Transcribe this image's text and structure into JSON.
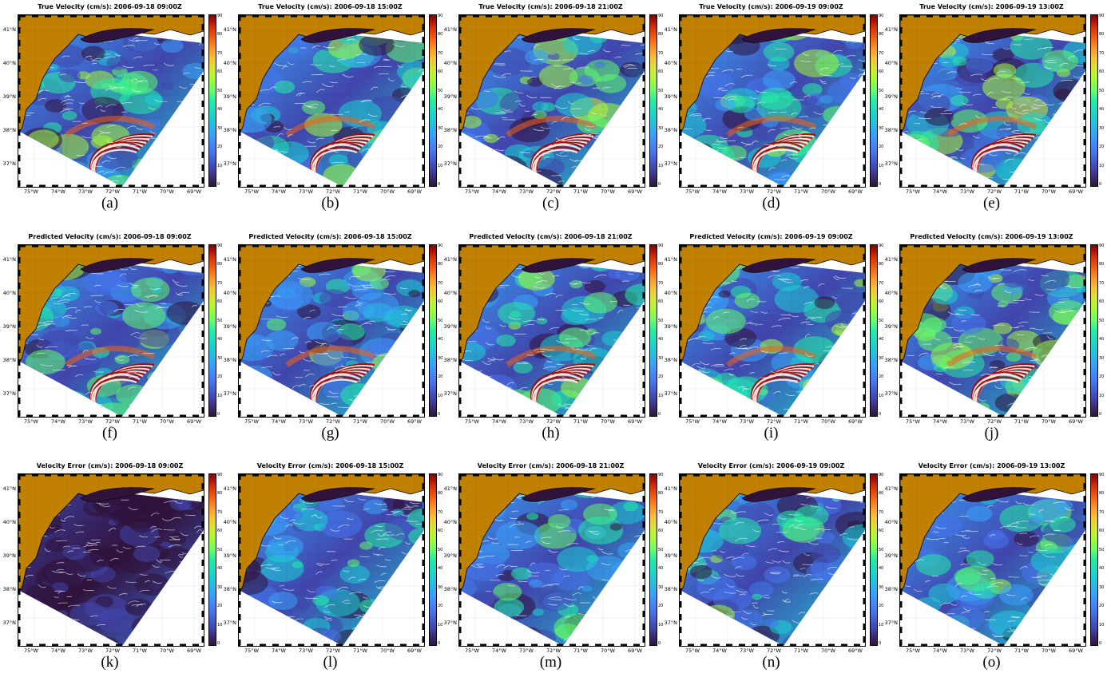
{
  "figure": {
    "colorbar_ticks": [
      "0",
      "10",
      "20",
      "30",
      "40",
      "50",
      "60",
      "70",
      "80",
      "90"
    ],
    "lat_labels": [
      "41°N",
      "40°N",
      "39°N",
      "38°N",
      "37°N"
    ],
    "lon_labels": [
      "75°W",
      "74°W",
      "73°W",
      "72°W",
      "71°W",
      "70°W",
      "69°W"
    ],
    "colors": {
      "land": "#c08000",
      "ocean_low": "#30123b",
      "ocean_mid": "#4675ed",
      "ocean_high": "#7a0403",
      "streamlines": "#ffffff"
    },
    "colormap": "turbo",
    "rows": [
      {
        "variable": "True Velocity (cm/s)",
        "panels": [
          {
            "title": "True Velocity (cm/s): 2006-09-18 09:00Z",
            "label": "(a)",
            "intensity": 0.55
          },
          {
            "title": "True Velocity (cm/s): 2006-09-18 15:00Z",
            "label": "(b)",
            "intensity": 0.55
          },
          {
            "title": "True Velocity (cm/s): 2006-09-18 21:00Z",
            "label": "(c)",
            "intensity": 0.6
          },
          {
            "title": "True Velocity (cm/s): 2006-09-19 09:00Z",
            "label": "(d)",
            "intensity": 0.55
          },
          {
            "title": "True Velocity (cm/s): 2006-09-19 13:00Z",
            "label": "(e)",
            "intensity": 0.6
          }
        ]
      },
      {
        "variable": "Predicted Velocity (cm/s)",
        "panels": [
          {
            "title": "Predicted Velocity (cm/s): 2006-09-18 09:00Z",
            "label": "(f)",
            "intensity": 0.5
          },
          {
            "title": "Predicted Velocity (cm/s): 2006-09-18 15:00Z",
            "label": "(g)",
            "intensity": 0.55
          },
          {
            "title": "Predicted Velocity (cm/s): 2006-09-18 21:00Z",
            "label": "(h)",
            "intensity": 0.55
          },
          {
            "title": "Predicted Velocity (cm/s): 2006-09-19 09:00Z",
            "label": "(i)",
            "intensity": 0.55
          },
          {
            "title": "Predicted Velocity (cm/s): 2006-09-19 13:00Z",
            "label": "(j)",
            "intensity": 0.6
          }
        ]
      },
      {
        "variable": "Velocity Error (cm/s)",
        "panels": [
          {
            "title": "Velocity Error (cm/s): 2006-09-18 09:00Z",
            "label": "(k)",
            "intensity": 0.05
          },
          {
            "title": "Velocity Error (cm/s): 2006-09-18 15:00Z",
            "label": "(l)",
            "intensity": 0.4
          },
          {
            "title": "Velocity Error (cm/s): 2006-09-18 21:00Z",
            "label": "(m)",
            "intensity": 0.4
          },
          {
            "title": "Velocity Error (cm/s): 2006-09-19 09:00Z",
            "label": "(n)",
            "intensity": 0.45
          },
          {
            "title": "Velocity Error (cm/s): 2006-09-19 13:00Z",
            "label": "(o)",
            "intensity": 0.5
          }
        ]
      }
    ]
  }
}
